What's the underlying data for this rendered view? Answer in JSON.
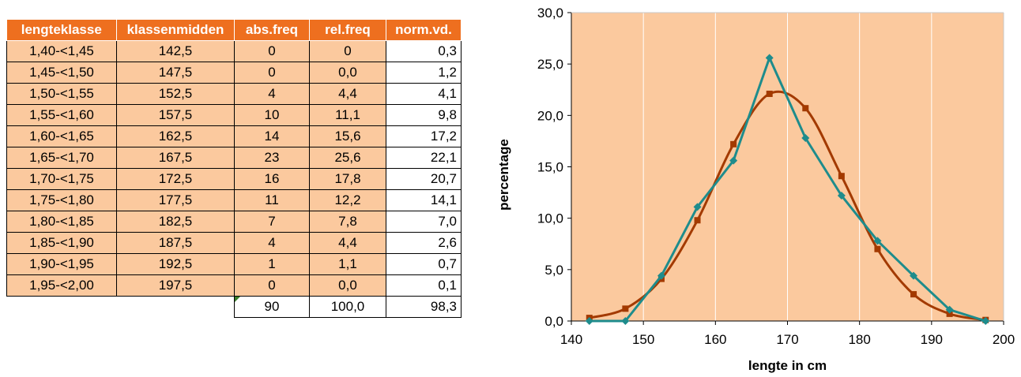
{
  "table": {
    "headers": [
      "lengteklasse",
      "klassenmidden",
      "abs.freq",
      "rel.freq",
      "norm.vd."
    ],
    "rows": [
      {
        "klasse": "1,40-<1,45",
        "midden": "142,5",
        "abs": "0",
        "rel": "0",
        "norm": "0,3"
      },
      {
        "klasse": "1,45-<1,50",
        "midden": "147,5",
        "abs": "0",
        "rel": "0,0",
        "norm": "1,2"
      },
      {
        "klasse": "1,50-<1,55",
        "midden": "152,5",
        "abs": "4",
        "rel": "4,4",
        "norm": "4,1"
      },
      {
        "klasse": "1,55-<1,60",
        "midden": "157,5",
        "abs": "10",
        "rel": "11,1",
        "norm": "9,8"
      },
      {
        "klasse": "1,60-<1,65",
        "midden": "162,5",
        "abs": "14",
        "rel": "15,6",
        "norm": "17,2"
      },
      {
        "klasse": "1,65-<1,70",
        "midden": "167,5",
        "abs": "23",
        "rel": "25,6",
        "norm": "22,1"
      },
      {
        "klasse": "1,70-<1,75",
        "midden": "172,5",
        "abs": "16",
        "rel": "17,8",
        "norm": "20,7"
      },
      {
        "klasse": "1,75-<1,80",
        "midden": "177,5",
        "abs": "11",
        "rel": "12,2",
        "norm": "14,1"
      },
      {
        "klasse": "1,80-<1,85",
        "midden": "182,5",
        "abs": "7",
        "rel": "7,8",
        "norm": "7,0"
      },
      {
        "klasse": "1,85-<1,90",
        "midden": "187,5",
        "abs": "4",
        "rel": "4,4",
        "norm": "2,6"
      },
      {
        "klasse": "1,90-<1,95",
        "midden": "192,5",
        "abs": "1",
        "rel": "1,1",
        "norm": "0,7"
      },
      {
        "klasse": "1,95-<2,00",
        "midden": "197,5",
        "abs": "0",
        "rel": "0,0",
        "norm": "0,1"
      }
    ],
    "totals": {
      "abs": "90",
      "rel": "100,0",
      "norm": "98,3"
    },
    "colors": {
      "header_bg": "#ee6f1f",
      "cell_bg": "#fbc99e"
    }
  },
  "chart_data": {
    "type": "line",
    "xlabel": "lengte in cm",
    "ylabel": "percentage",
    "xlim": [
      140,
      200
    ],
    "ylim": [
      0,
      30
    ],
    "x_ticks": [
      "140",
      "150",
      "160",
      "170",
      "180",
      "190",
      "200"
    ],
    "y_ticks": [
      "0,0",
      "5,0",
      "10,0",
      "15,0",
      "20,0",
      "25,0",
      "30,0"
    ],
    "grid": "vertical",
    "x": [
      142.5,
      147.5,
      152.5,
      157.5,
      162.5,
      167.5,
      172.5,
      177.5,
      182.5,
      187.5,
      192.5,
      197.5
    ],
    "series": [
      {
        "values": [
          0.3,
          1.2,
          4.1,
          9.8,
          17.2,
          22.1,
          20.7,
          14.1,
          7.0,
          2.6,
          0.7,
          0.1
        ],
        "color": "#a33a00",
        "marker": "square",
        "smooth": true
      },
      {
        "values": [
          0,
          0,
          4.4,
          11.1,
          15.6,
          25.6,
          17.8,
          12.2,
          7.8,
          4.4,
          1.1,
          0
        ],
        "color": "#1e8c8c",
        "marker": "diamond",
        "smooth": false
      }
    ],
    "plot_bg": "#fbc99e"
  }
}
